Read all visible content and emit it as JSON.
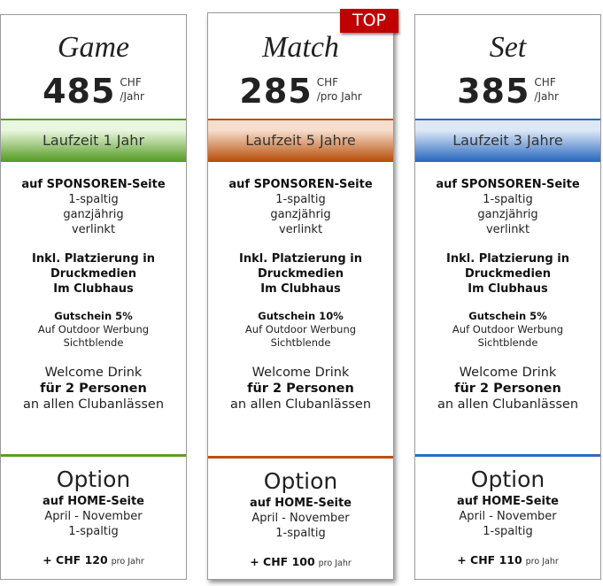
{
  "badge": "TOP",
  "plans": [
    {
      "name": "Game",
      "amount": "485",
      "currency": "CHF",
      "period": "/Jahr",
      "term": "Laufzeit 1 Jahr",
      "color": "#5a9e2a",
      "light": "#eaf6df",
      "sponsor": {
        "title": "auf SPONSOREN-Seite",
        "lines": [
          "1-spaltig",
          "ganzjährig",
          "verlinkt"
        ]
      },
      "print": [
        "Inkl. Platzierung in",
        "Druckmedien",
        "Im Clubhaus"
      ],
      "voucher": {
        "title": "Gutschein 5%",
        "lines": [
          "Auf Outdoor Werbung",
          "Sichtblende"
        ]
      },
      "drink": [
        "Welcome Drink",
        "für 2 Personen",
        "an allen Clubanlässen"
      ],
      "option": {
        "title": "Option",
        "subtitle": "auf HOME-Seite",
        "lines": [
          "April - November",
          "1-spaltig"
        ],
        "price": "+ CHF 120",
        "per": "pro Jahr"
      }
    },
    {
      "name": "Match",
      "amount": "285",
      "currency": "CHF",
      "period": "/pro Jahr",
      "term": "Laufzeit 5 Jahre",
      "color": "#b9520f",
      "light": "#f6ddcc",
      "sponsor": {
        "title": "auf SPONSOREN-Seite",
        "lines": [
          "1-spaltig",
          "ganzjährig",
          "verlinkt"
        ]
      },
      "print": [
        "Inkl. Platzierung in",
        "Druckmedien",
        "Im Clubhaus"
      ],
      "voucher": {
        "title": "Gutschein 10%",
        "lines": [
          "Auf Outdoor Werbung",
          "Sichtblende"
        ]
      },
      "drink": [
        "Welcome Drink",
        "für 2 Personen",
        "an allen Clubanlässen"
      ],
      "option": {
        "title": "Option",
        "subtitle": "auf HOME-Seite",
        "lines": [
          "April - November",
          "1-spaltig"
        ],
        "price": "+ CHF 100",
        "per": "pro Jahr"
      }
    },
    {
      "name": "Set",
      "amount": "385",
      "currency": "CHF",
      "period": "/Jahr",
      "term": "Laufzeit 3 Jahre",
      "color": "#2f6cc0",
      "light": "#dde8f7",
      "sponsor": {
        "title": "auf SPONSOREN-Seite",
        "lines": [
          "1-spaltig",
          "ganzjährig",
          "verlinkt"
        ]
      },
      "print": [
        "Inkl. Platzierung in",
        "Druckmedien",
        "Im Clubhaus"
      ],
      "voucher": {
        "title": "Gutschein 5%",
        "lines": [
          "Auf Outdoor Werbung",
          "Sichtblende"
        ]
      },
      "drink": [
        "Welcome Drink",
        "für 2 Personen",
        "an allen Clubanlässen"
      ],
      "option": {
        "title": "Option",
        "subtitle": "auf HOME-Seite",
        "lines": [
          "April - November",
          "1-spaltig"
        ],
        "price": "+ CHF 110",
        "per": "pro Jahr"
      }
    }
  ]
}
